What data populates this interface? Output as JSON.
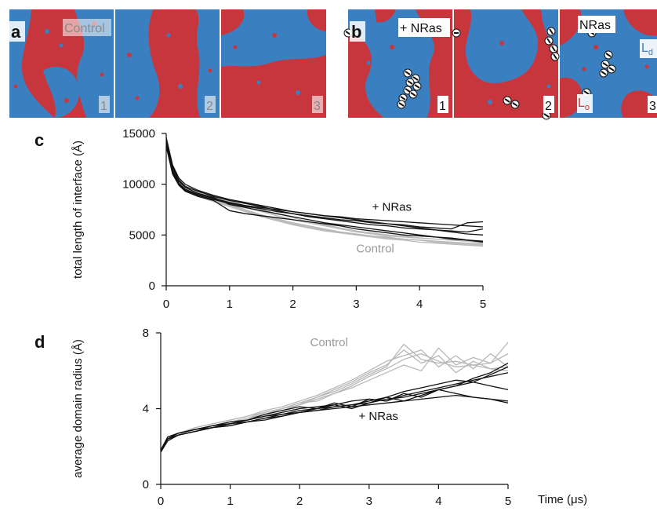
{
  "panels": {
    "a": {
      "letter": "a",
      "label": "Control",
      "frames": [
        "1",
        "2",
        "3"
      ]
    },
    "b": {
      "letter": "b",
      "label": "+ NRas",
      "frames": [
        "1",
        "2",
        "3"
      ],
      "center_label": "NRas",
      "phase_ld": "L",
      "phase_ld_sub": "d",
      "phase_lo": "L",
      "phase_lo_sub": "o"
    },
    "c": {
      "letter": "c"
    },
    "d": {
      "letter": "d"
    }
  },
  "colors": {
    "lo_red": "#c8363d",
    "ld_blue": "#3a7fbf",
    "control_gray": "#b8b8b8",
    "nras_black": "#111111"
  },
  "chart_data": [
    {
      "id": "c",
      "type": "line",
      "title": "",
      "xlabel": "",
      "ylabel": "total length of interface (Å)",
      "xlim": [
        0,
        5
      ],
      "ylim": [
        0,
        15000
      ],
      "xticks": [
        0,
        1,
        2,
        3,
        4,
        5
      ],
      "yticks": [
        0,
        5000,
        10000,
        15000
      ],
      "x": [
        0,
        0.1,
        0.2,
        0.3,
        0.5,
        0.75,
        1,
        1.25,
        1.5,
        1.75,
        2,
        2.25,
        2.5,
        2.75,
        3,
        3.25,
        3.5,
        3.75,
        4,
        4.25,
        4.5,
        4.75,
        5
      ],
      "annotations": [
        {
          "text": "+ NRas",
          "x": 3.25,
          "y": 7400,
          "series_group": "nras"
        },
        {
          "text": "Control",
          "x": 3.0,
          "y": 3300,
          "series_group": "control"
        }
      ],
      "series": [
        {
          "group": "control",
          "values": [
            14200,
            11500,
            10300,
            9600,
            9000,
            8500,
            8000,
            7500,
            7000,
            6600,
            6200,
            5900,
            5600,
            5300,
            5100,
            4900,
            4700,
            4600,
            4500,
            4400,
            4300,
            4200,
            4100
          ]
        },
        {
          "group": "control",
          "values": [
            14500,
            11800,
            10500,
            9800,
            9200,
            8600,
            8200,
            7700,
            7300,
            6900,
            6500,
            6200,
            5900,
            5600,
            5300,
            5100,
            4900,
            4800,
            4700,
            4600,
            4500,
            4400,
            4300
          ]
        },
        {
          "group": "control",
          "values": [
            13900,
            11200,
            10100,
            9400,
            8800,
            8300,
            7800,
            7300,
            6800,
            6400,
            6000,
            5700,
            5400,
            5200,
            5000,
            4800,
            4600,
            4500,
            4300,
            4200,
            4100,
            4000,
            3900
          ]
        },
        {
          "group": "control",
          "values": [
            14100,
            11600,
            10400,
            9700,
            9100,
            8700,
            8300,
            7900,
            7500,
            7100,
            6700,
            6300,
            6000,
            5700,
            5400,
            5200,
            5000,
            4900,
            4700,
            4600,
            4500,
            4400,
            4200
          ]
        },
        {
          "group": "control",
          "values": [
            14300,
            11400,
            10200,
            9500,
            8900,
            8400,
            7900,
            7400,
            6900,
            6500,
            6100,
            5800,
            5500,
            5300,
            5100,
            4900,
            4800,
            4600,
            4500,
            4300,
            4200,
            4100,
            4000
          ]
        },
        {
          "group": "nras",
          "values": [
            14600,
            11900,
            10600,
            10000,
            9400,
            8900,
            8500,
            8200,
            7900,
            7600,
            7300,
            7100,
            6900,
            6700,
            6500,
            6300,
            6100,
            5900,
            5700,
            5500,
            5300,
            5100,
            5000
          ]
        },
        {
          "group": "nras",
          "values": [
            14000,
            11300,
            10100,
            9500,
            9000,
            8600,
            8200,
            7900,
            7700,
            7500,
            7300,
            7100,
            6900,
            6800,
            6600,
            6500,
            6400,
            6300,
            6200,
            6100,
            6000,
            5900,
            5800
          ]
        },
        {
          "group": "nras",
          "values": [
            13800,
            11000,
            9900,
            9300,
            8800,
            8400,
            7400,
            7100,
            6900,
            6700,
            6500,
            6300,
            6100,
            5900,
            5600,
            5400,
            5200,
            5000,
            4900,
            4800,
            4600,
            4500,
            4400
          ]
        },
        {
          "group": "nras",
          "values": [
            14400,
            11700,
            10400,
            9800,
            9300,
            8800,
            8400,
            8100,
            7800,
            7400,
            7100,
            6800,
            6600,
            6400,
            6200,
            6000,
            5900,
            5700,
            5600,
            5500,
            5400,
            5300,
            5600
          ]
        },
        {
          "group": "nras",
          "values": [
            14200,
            11500,
            10300,
            9700,
            9100,
            8700,
            8000,
            7700,
            7400,
            7100,
            6800,
            6500,
            6200,
            6000,
            5800,
            5600,
            5400,
            5200,
            5000,
            4800,
            4700,
            4500,
            4300
          ]
        },
        {
          "group": "nras",
          "values": [
            13700,
            11100,
            10000,
            9400,
            8900,
            8500,
            8100,
            7800,
            7600,
            7300,
            7100,
            6900,
            6700,
            6500,
            6400,
            6200,
            6100,
            6000,
            5800,
            5700,
            5600,
            6200,
            6300
          ]
        }
      ]
    },
    {
      "id": "d",
      "type": "line",
      "title": "",
      "xlabel": "Time (μs)",
      "ylabel": "average domain radius (Å)",
      "xlim": [
        0,
        5
      ],
      "ylim": [
        0,
        8
      ],
      "xticks": [
        0,
        1,
        2,
        3,
        4,
        5
      ],
      "yticks": [
        0,
        4,
        8
      ],
      "x": [
        0,
        0.1,
        0.25,
        0.5,
        0.75,
        1,
        1.25,
        1.5,
        1.75,
        2,
        2.25,
        2.5,
        2.75,
        3,
        3.25,
        3.5,
        3.75,
        4,
        4.25,
        4.5,
        4.75,
        5
      ],
      "annotations": [
        {
          "text": "Control",
          "x": 2.15,
          "y": 7.3,
          "series_group": "control"
        },
        {
          "text": "+ NRas",
          "x": 2.85,
          "y": 3.4,
          "series_group": "nras"
        }
      ],
      "series": [
        {
          "group": "control",
          "values": [
            1.7,
            2.4,
            2.6,
            2.9,
            3.1,
            3.3,
            3.5,
            3.8,
            4.0,
            4.3,
            4.6,
            4.9,
            5.3,
            5.8,
            6.2,
            7.4,
            6.6,
            6.4,
            6.5,
            6.3,
            6.1,
            6.0
          ]
        },
        {
          "group": "control",
          "values": [
            1.8,
            2.5,
            2.7,
            3.0,
            3.2,
            3.4,
            3.6,
            3.9,
            4.1,
            4.4,
            4.7,
            5.1,
            5.5,
            6.0,
            6.5,
            6.8,
            7.1,
            6.2,
            6.8,
            6.1,
            6.9,
            6.2
          ]
        },
        {
          "group": "control",
          "values": [
            1.7,
            2.3,
            2.6,
            2.9,
            3.1,
            3.2,
            3.4,
            3.7,
            3.9,
            4.2,
            4.5,
            4.8,
            5.1,
            5.5,
            5.9,
            6.3,
            6.0,
            7.2,
            6.3,
            6.7,
            6.4,
            7.5
          ]
        },
        {
          "group": "control",
          "values": [
            1.8,
            2.4,
            2.7,
            2.9,
            3.0,
            3.3,
            3.5,
            3.7,
            4.0,
            4.3,
            4.4,
            4.8,
            5.2,
            5.7,
            6.1,
            6.6,
            6.9,
            6.5,
            6.2,
            6.3,
            6.4,
            6.9
          ]
        },
        {
          "group": "control",
          "values": [
            1.7,
            2.5,
            2.6,
            3.0,
            3.2,
            3.4,
            3.6,
            3.8,
            4.0,
            4.2,
            4.6,
            5.0,
            5.4,
            5.9,
            6.3,
            7.1,
            6.4,
            6.8,
            5.9,
            6.5,
            6.1,
            6.2
          ]
        },
        {
          "group": "nras",
          "values": [
            1.7,
            2.4,
            2.6,
            2.8,
            3.0,
            3.2,
            3.3,
            3.5,
            3.7,
            3.8,
            4.0,
            4.1,
            4.2,
            4.3,
            4.5,
            4.6,
            4.8,
            5.0,
            5.2,
            5.4,
            5.8,
            6.2
          ]
        },
        {
          "group": "nras",
          "values": [
            1.8,
            2.5,
            2.7,
            2.9,
            3.0,
            3.1,
            3.3,
            3.4,
            3.6,
            3.8,
            3.9,
            4.0,
            4.1,
            4.2,
            4.3,
            4.4,
            4.5,
            4.6,
            4.7,
            4.6,
            4.5,
            4.4
          ]
        },
        {
          "group": "nras",
          "values": [
            1.7,
            2.4,
            2.6,
            2.8,
            3.0,
            3.2,
            3.4,
            3.6,
            3.8,
            4.0,
            4.1,
            4.2,
            4.0,
            4.3,
            4.6,
            4.4,
            4.7,
            5.0,
            5.2,
            5.6,
            5.9,
            6.4
          ]
        },
        {
          "group": "nras",
          "values": [
            1.8,
            2.5,
            2.7,
            2.9,
            3.1,
            3.3,
            3.4,
            3.7,
            3.9,
            4.1,
            4.0,
            4.3,
            4.1,
            4.5,
            4.4,
            4.8,
            4.6,
            5.0,
            4.8,
            4.6,
            4.5,
            4.3
          ]
        },
        {
          "group": "nras",
          "values": [
            1.7,
            2.3,
            2.6,
            2.8,
            3.0,
            3.1,
            3.3,
            3.5,
            3.6,
            3.8,
            3.9,
            4.1,
            4.2,
            4.4,
            4.6,
            4.9,
            5.1,
            5.3,
            5.5,
            5.4,
            5.2,
            5.0
          ]
        },
        {
          "group": "nras",
          "values": [
            1.8,
            2.4,
            2.7,
            2.9,
            3.1,
            3.2,
            3.4,
            3.6,
            3.7,
            3.9,
            4.0,
            4.2,
            4.4,
            4.5,
            4.4,
            4.7,
            4.9,
            5.1,
            5.3,
            5.5,
            5.7,
            5.9
          ]
        }
      ]
    }
  ]
}
